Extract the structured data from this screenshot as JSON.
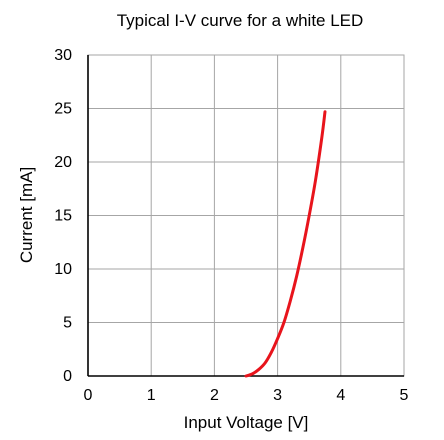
{
  "chart_data": {
    "type": "line",
    "title": "Typical I-V curve for a white LED",
    "xlabel": "Input Voltage [V]",
    "ylabel": "Current [mA]",
    "xlim": [
      0,
      5
    ],
    "ylim": [
      0,
      30
    ],
    "xticks": [
      0,
      1,
      2,
      3,
      4,
      5
    ],
    "yticks": [
      0,
      5,
      10,
      15,
      20,
      25,
      30
    ],
    "xtick_labels": [
      "0",
      "1",
      "2",
      "3",
      "4",
      "5"
    ],
    "ytick_labels": [
      "0",
      "5",
      "10",
      "15",
      "20",
      "25",
      "30"
    ],
    "grid": true,
    "legend": "none",
    "series": [
      {
        "color": "#e8141c",
        "x": [
          2.5,
          2.6,
          2.7,
          2.8,
          2.9,
          3.0,
          3.1,
          3.2,
          3.3,
          3.4,
          3.5,
          3.6,
          3.7,
          3.75
        ],
        "y": [
          0.0,
          0.2,
          0.6,
          1.2,
          2.2,
          3.5,
          5.0,
          7.0,
          9.3,
          12.0,
          15.0,
          18.3,
          22.3,
          24.7
        ]
      }
    ]
  }
}
